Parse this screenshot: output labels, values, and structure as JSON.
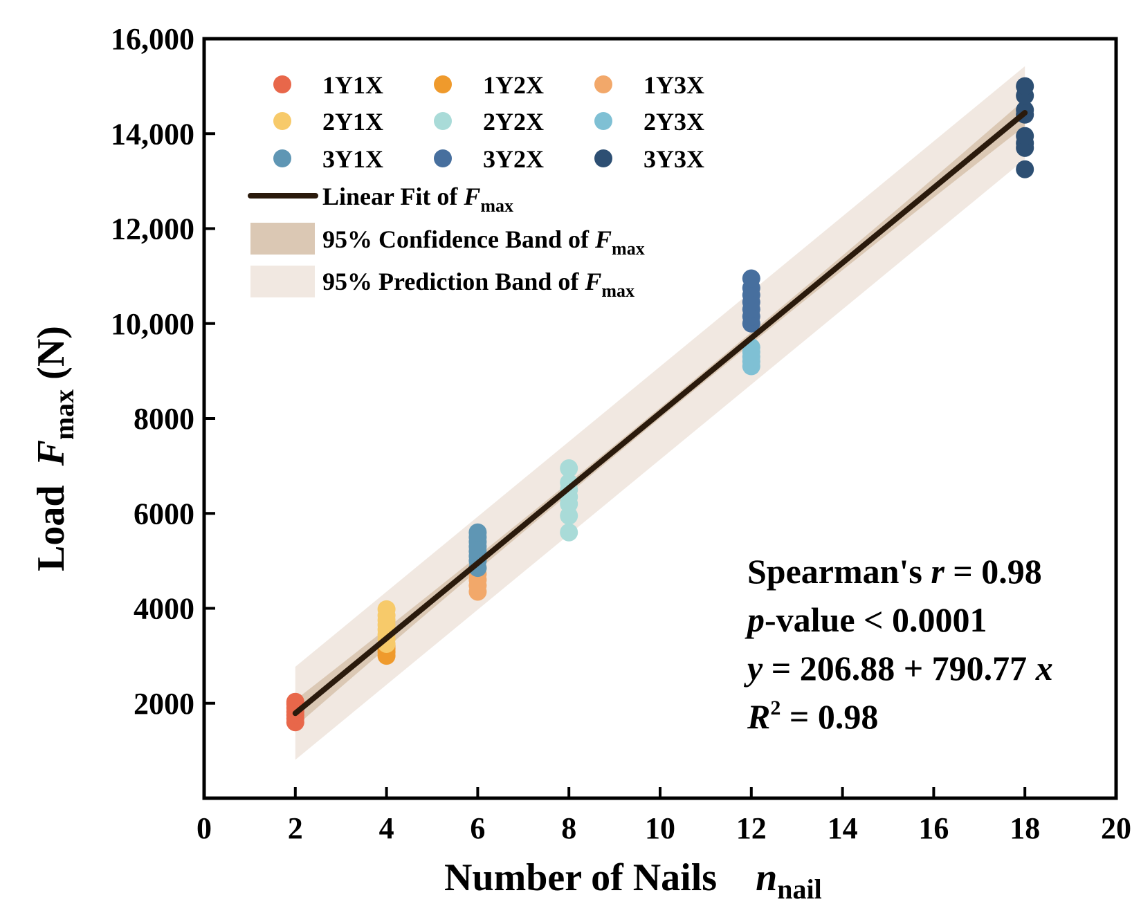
{
  "chart_data": {
    "type": "scatter",
    "xlabel": {
      "main": "Number of Nails",
      "symbol": "n",
      "subscript": "nail"
    },
    "ylabel": {
      "main": "Load",
      "symbol": "F",
      "subscript": "max",
      "unit": "(N)"
    },
    "xlim": [
      0,
      20
    ],
    "ylim": [
      0,
      16000
    ],
    "x_ticks": [
      0,
      2,
      4,
      6,
      8,
      10,
      12,
      14,
      16,
      18,
      20
    ],
    "x_tick_labels": [
      "0",
      "2",
      "4",
      "6",
      "8",
      "10",
      "12",
      "14",
      "16",
      "18",
      "20"
    ],
    "y_ticks": [
      2000,
      4000,
      6000,
      8000,
      10000,
      12000,
      14000,
      16000
    ],
    "y_tick_labels": [
      "2000",
      "4000",
      "6000",
      "8000",
      "10,000",
      "12,000",
      "14,000",
      "16,000"
    ],
    "grid": false,
    "series": [
      {
        "name": "1Y1X",
        "color": "#e8674a",
        "x": 2,
        "values": [
          1600,
          1680,
          1750,
          1820,
          1900,
          1980,
          2030
        ]
      },
      {
        "name": "1Y2X",
        "color": "#ef9a2c",
        "x": 4,
        "values": [
          3000,
          3080,
          3150,
          3220
        ]
      },
      {
        "name": "1Y3X",
        "color": "#f2a86a",
        "x": 6,
        "values": [
          4350,
          4480,
          4600,
          4720,
          4850
        ]
      },
      {
        "name": "2Y1X",
        "color": "#f7ca6a",
        "x": 4,
        "values": [
          3250,
          3350,
          3450,
          3550,
          3650,
          3750,
          3850,
          3980
        ]
      },
      {
        "name": "2Y2X",
        "color": "#a9dbd8",
        "x": 8,
        "values": [
          5600,
          5950,
          6200,
          6350,
          6500,
          6650,
          6950
        ]
      },
      {
        "name": "2Y3X",
        "color": "#7fc0d4",
        "x": 12,
        "values": [
          9100,
          9200,
          9300,
          9400,
          9500
        ]
      },
      {
        "name": "3Y1X",
        "color": "#5f96b4",
        "x": 6,
        "values": [
          4850,
          5000,
          5100,
          5200,
          5300,
          5400,
          5500,
          5600
        ]
      },
      {
        "name": "3Y2X",
        "color": "#476f9e",
        "x": 12,
        "values": [
          10000,
          10150,
          10300,
          10450,
          10600,
          10750,
          10950
        ]
      },
      {
        "name": "3Y3X",
        "color": "#2d4f73",
        "x": 18,
        "values": [
          13250,
          13700,
          13800,
          13950,
          14400,
          14500,
          14800,
          15000
        ]
      }
    ],
    "fit": {
      "label": "Linear Fit of",
      "symbol": "F",
      "subscript": "max",
      "intercept": 206.88,
      "slope": 790.77,
      "x_range": [
        2,
        18
      ],
      "color": "#2a1a0c"
    },
    "confidence_band": {
      "label": "95% Confidence Band of",
      "symbol": "F",
      "subscript": "max",
      "half_width_ends": 280,
      "half_width_center": 110,
      "color": "#dbc8b4"
    },
    "prediction_band": {
      "label": "95% Prediction Band of",
      "symbol": "F",
      "subscript": "max",
      "half_width": 980,
      "color": "#f1e8e1"
    },
    "annotations": {
      "spearman": {
        "text": "Spearman's ",
        "symbol": "r",
        "rest": " = 0.98"
      },
      "pvalue": {
        "symbol": "p",
        "rest": "-value <  0.0001"
      },
      "equation": {
        "y": "y",
        "mid": " = 206.88 + 790.77 ",
        "x": "x"
      },
      "r2": {
        "symbol": "R",
        "sup": "2",
        "rest": " = 0.98"
      }
    },
    "legend_position": "top-left"
  }
}
